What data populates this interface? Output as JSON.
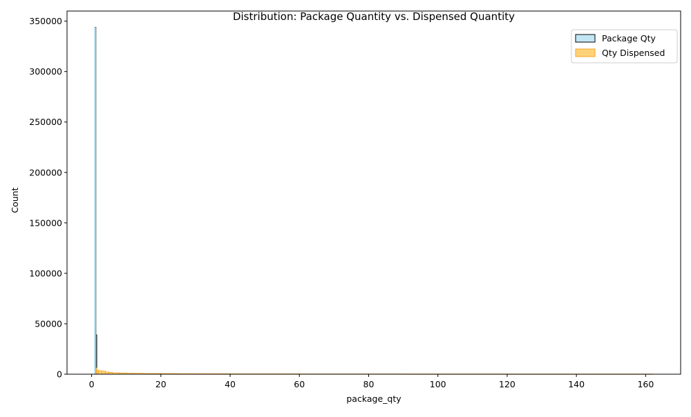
{
  "chart_data": {
    "type": "histogram",
    "title": "Distribution: Package Quantity vs. Dispensed Quantity",
    "xlabel": "package_qty",
    "ylabel": "Count",
    "xlim": [
      -7.1,
      170.1
    ],
    "ylim": [
      0,
      360000
    ],
    "xticks": [
      0,
      20,
      40,
      60,
      80,
      100,
      120,
      140,
      160
    ],
    "yticks": [
      0,
      50000,
      100000,
      150000,
      200000,
      250000,
      300000,
      350000
    ],
    "grid": false,
    "legend_position": "top-right",
    "colors": {
      "package_fill": "#87ceeb",
      "package_edge": "#000000",
      "dispensed_fill": "#ffc34d",
      "dispensed_edge": "#f5a623"
    },
    "series": [
      {
        "name": "Package Qty",
        "bin_edges": [
          0.5,
          0.75,
          1.0,
          1.25,
          1.5,
          1.75,
          2.0
        ],
        "counts": [
          0,
          0,
          344000,
          39000,
          0,
          0
        ]
      },
      {
        "name": "Qty Dispensed",
        "bin_edges": [
          1.0,
          1.25,
          1.5,
          2.0,
          3.0,
          4.0,
          5.0,
          6.0,
          8.0,
          10.0,
          12.0,
          15.0,
          20.0,
          25.0,
          30.0,
          40.0,
          60.0,
          90.0,
          120.0,
          162.0
        ],
        "counts": [
          7000,
          6000,
          4000,
          3500,
          3000,
          2200,
          1800,
          1400,
          1200,
          1000,
          900,
          700,
          600,
          500,
          450,
          350,
          250,
          200,
          150
        ]
      }
    ]
  }
}
